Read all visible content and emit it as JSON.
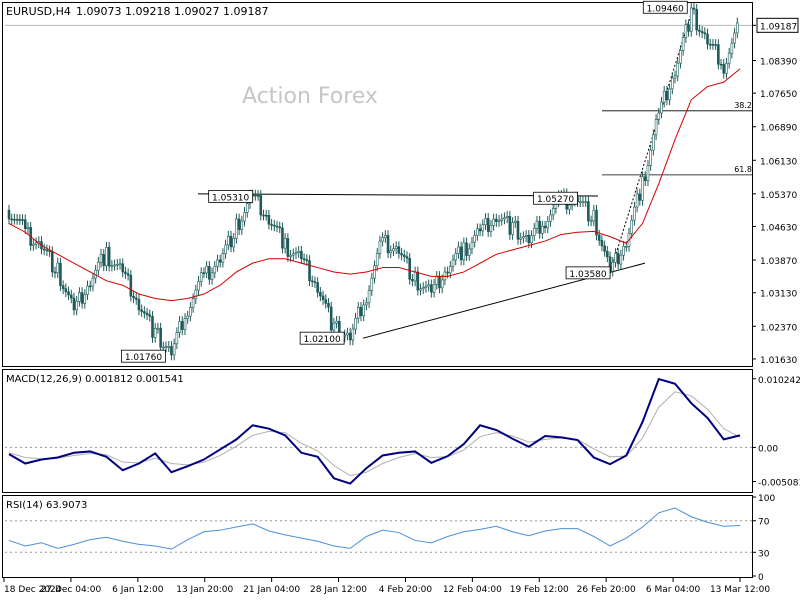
{
  "header": {
    "symbol": "EURUSD,H4",
    "ohlc": "1.09073 1.09218 1.09027 1.09187"
  },
  "watermark": "Action Forex",
  "colors": {
    "candle": "#1f5a5a",
    "ma": "#d40000",
    "macd_line": "#000080",
    "macd_signal": "#b0b0b0",
    "rsi": "#4a90d9",
    "annotation": "#000000"
  },
  "chart_data": [
    {
      "type": "candlestick",
      "title": "EURUSD,H4",
      "series": [
        {
          "name": "EURUSD",
          "values": [
            1.05,
            1.045,
            1.042,
            1.036,
            1.027,
            1.034,
            1.04,
            1.036,
            1.029,
            1.022,
            1.0176,
            1.028,
            1.035,
            1.039,
            1.046,
            1.053,
            1.048,
            1.042,
            1.039,
            1.033,
            1.0232,
            1.021,
            1.031,
            1.043,
            1.041,
            1.034,
            1.031,
            1.037,
            1.041,
            1.0453,
            1.049,
            1.046,
            1.043,
            1.048,
            1.052,
            1.0527,
            1.048,
            1.0358,
            1.043,
            1.056,
            1.072,
            1.082,
            1.0946,
            1.088,
            1.083,
            1.0919
          ]
        },
        {
          "name": "MA",
          "values": [
            1.047,
            1.045,
            1.042,
            1.04,
            1.038,
            1.036,
            1.034,
            1.033,
            1.031,
            1.03,
            1.0295,
            1.03,
            1.031,
            1.033,
            1.036,
            1.038,
            1.039,
            1.039,
            1.038,
            1.037,
            1.036,
            1.0355,
            1.036,
            1.037,
            1.037,
            1.036,
            1.035,
            1.035,
            1.036,
            1.038,
            1.04,
            1.041,
            1.042,
            1.043,
            1.0445,
            1.045,
            1.0452,
            1.044,
            1.0425,
            1.047,
            1.056,
            1.066,
            1.075,
            1.078,
            1.079,
            1.082
          ]
        }
      ],
      "x_labels": [
        "18 Dec 2024",
        "27 Dec 04:00",
        "6 Jan 12:00",
        "13 Jan 20:00",
        "21 Jan 04:00",
        "28 Jan 12:00",
        "4 Feb 20:00",
        "12 Feb 04:00",
        "19 Feb 12:00",
        "26 Feb 20:00",
        "6 Mar 04:00",
        "13 Mar 12:00"
      ],
      "y_ticks": [
        "1.09187",
        "1.08390",
        "1.07650",
        "1.06890",
        "1.06130",
        "1.05370",
        "1.04630",
        "1.03870",
        "1.03130",
        "1.02370",
        "1.01630"
      ],
      "ylim": [
        1.0147,
        1.0967
      ],
      "current_price": "1.09187",
      "annotations": [
        {
          "label": "1.09460"
        },
        {
          "label": "1.05310"
        },
        {
          "label": "1.05270"
        },
        {
          "label": "1.03580"
        },
        {
          "label": "1.02100"
        },
        {
          "label": "1.01760"
        }
      ],
      "fib_levels": [
        {
          "label": "38.2"
        },
        {
          "label": "61.8"
        }
      ]
    },
    {
      "type": "line",
      "title": "MACD(12,26,9) 0.001812 0.001541",
      "y_ticks": [
        "0.010242",
        "0.00",
        "-0.005081"
      ],
      "ylim": [
        -0.0065,
        0.0114
      ],
      "series": [
        {
          "name": "MACD",
          "values": [
            -0.001,
            -0.0024,
            -0.0018,
            -0.0015,
            -0.0008,
            -0.0006,
            -0.0014,
            -0.0034,
            -0.0024,
            -0.0009,
            -0.0037,
            -0.0028,
            -0.0018,
            -0.0003,
            0.0012,
            0.0033,
            0.0028,
            0.0018,
            -0.0008,
            -0.0014,
            -0.0046,
            -0.0054,
            -0.0031,
            -0.0012,
            -0.0008,
            -0.0006,
            -0.0023,
            -0.0013,
            0.0005,
            0.0033,
            0.0026,
            0.0013,
            0.0001,
            0.0017,
            0.0015,
            0.0011,
            -0.0015,
            -0.0025,
            -0.0012,
            0.0038,
            0.0102,
            0.0095,
            0.0066,
            0.0044,
            0.0012,
            0.0018
          ]
        },
        {
          "name": "Signal",
          "values": [
            -0.0008,
            -0.0015,
            -0.0017,
            -0.0016,
            -0.0012,
            -0.0009,
            -0.0011,
            -0.0022,
            -0.0023,
            -0.0016,
            -0.0024,
            -0.0026,
            -0.0022,
            -0.0012,
            0.0002,
            0.0018,
            0.0024,
            0.0022,
            0.0006,
            -0.0005,
            -0.0027,
            -0.0042,
            -0.0037,
            -0.0024,
            -0.0015,
            -0.0009,
            -0.0015,
            -0.0014,
            -0.0004,
            0.0016,
            0.0022,
            0.0017,
            0.0008,
            0.0012,
            0.0014,
            0.0012,
            -0.0002,
            -0.0014,
            -0.0013,
            0.0014,
            0.006,
            0.0083,
            0.0077,
            0.0057,
            0.0028,
            0.0015
          ]
        }
      ]
    },
    {
      "type": "line",
      "title": "RSI(14) 63.9073",
      "y_ticks": [
        "100",
        "70",
        "30",
        "0"
      ],
      "ylim": [
        0,
        100
      ],
      "series": [
        {
          "name": "RSI",
          "values": [
            45,
            38,
            42,
            35,
            40,
            46,
            49,
            44,
            40,
            38,
            34,
            46,
            56,
            58,
            62,
            66,
            57,
            52,
            48,
            44,
            38,
            35,
            50,
            58,
            55,
            45,
            42,
            50,
            56,
            59,
            63,
            56,
            51,
            57,
            60,
            60,
            50,
            38,
            48,
            62,
            80,
            86,
            75,
            68,
            63,
            63.9
          ]
        }
      ]
    }
  ]
}
